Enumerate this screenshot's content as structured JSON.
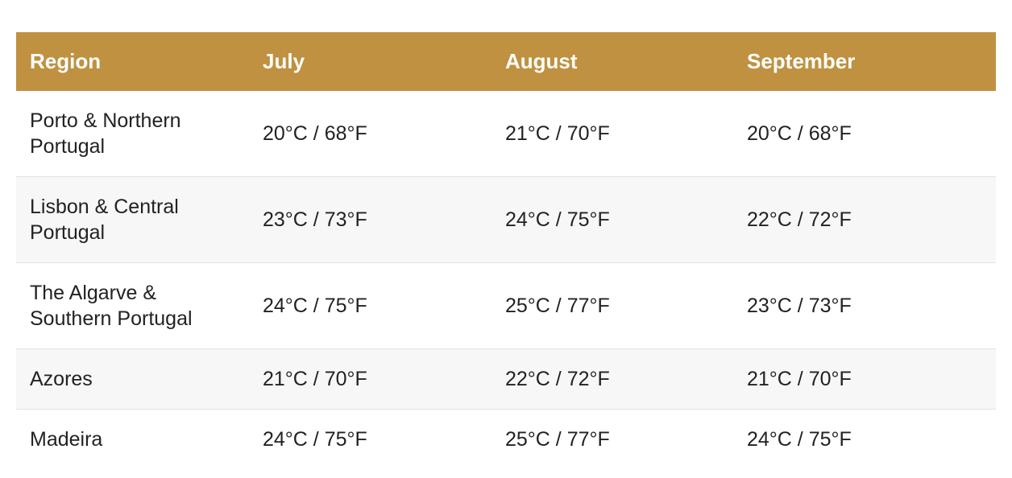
{
  "table": {
    "headers": [
      "Region",
      "July",
      "August",
      "September"
    ],
    "rows": [
      [
        "Porto & Northern Portugal",
        "20°C / 68°F",
        "21°C / 70°F",
        "20°C / 68°F"
      ],
      [
        "Lisbon & Central Portugal",
        "23°C / 73°F",
        "24°C / 75°F",
        "22°C / 72°F"
      ],
      [
        "The Algarve & Southern Portugal",
        "24°C / 75°F",
        "25°C / 77°F",
        "23°C / 73°F"
      ],
      [
        "Azores",
        "21°C / 70°F",
        "22°C / 72°F",
        "21°C / 70°F"
      ],
      [
        "Madeira",
        "24°C / 75°F",
        "25°C / 77°F",
        "24°C / 75°F"
      ]
    ]
  }
}
